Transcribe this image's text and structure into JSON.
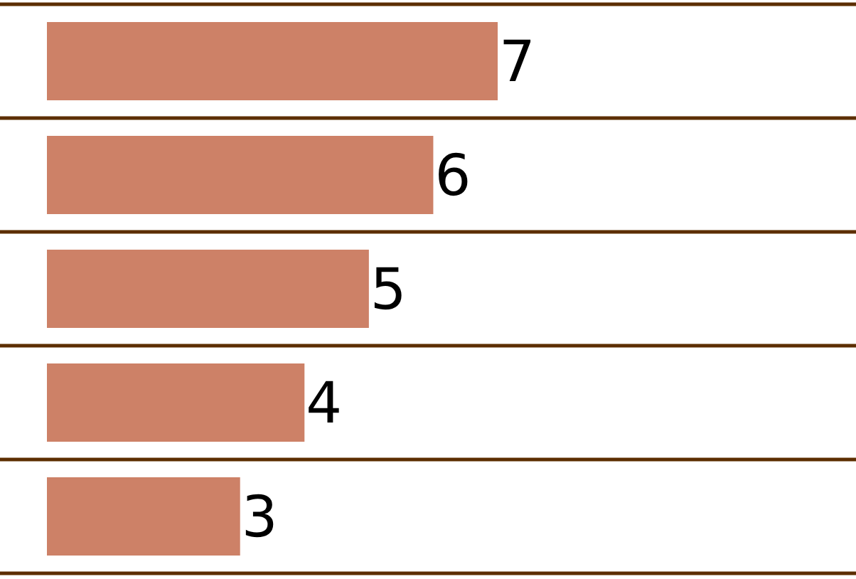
{
  "chart_data": {
    "type": "bar",
    "orientation": "horizontal",
    "categories": [
      null,
      null,
      null,
      null,
      null
    ],
    "values": [
      7,
      6,
      5,
      4,
      3
    ],
    "color": "#cd8167",
    "data_labels": true,
    "grid": "y",
    "tick_labels": false
  }
}
